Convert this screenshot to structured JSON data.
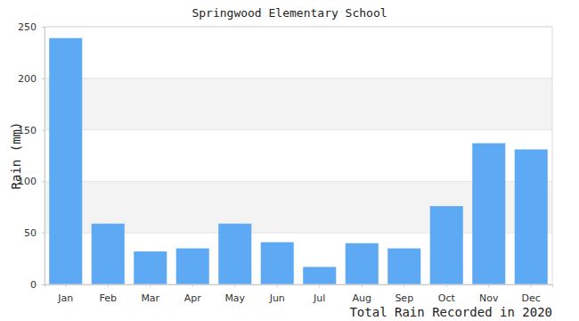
{
  "chart_data": {
    "type": "bar",
    "title": "Springwood Elementary School",
    "x_label": "Total Rain Recorded in 2020",
    "y_label": "Rain (mm)",
    "categories": [
      "Jan",
      "Feb",
      "Mar",
      "Apr",
      "May",
      "Jun",
      "Jul",
      "Aug",
      "Sep",
      "Oct",
      "Nov",
      "Dec"
    ],
    "values": [
      239,
      59,
      32,
      35,
      59,
      41,
      17,
      40,
      35,
      76,
      137,
      131
    ],
    "color": "#5ea9f4",
    "ylim": [
      0,
      250
    ],
    "yticks": [
      0,
      50,
      100,
      150,
      200,
      250
    ],
    "grid": true
  }
}
